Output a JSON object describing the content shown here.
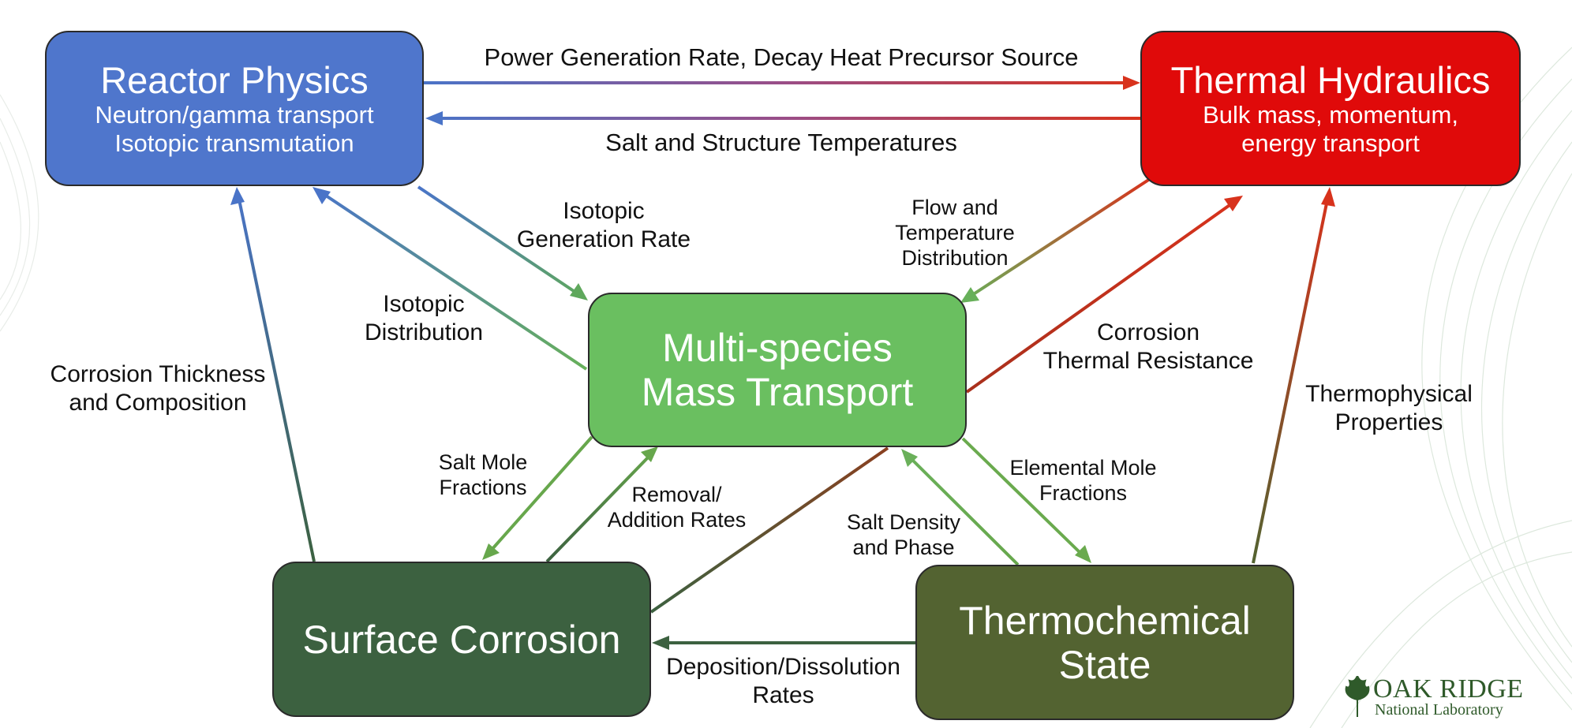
{
  "colors": {
    "reactor_physics": "#4f76cc",
    "thermal_hydraulics": "#e00a0a",
    "mass_transport": "#6abf60",
    "surface_corrosion": "#3c6140",
    "thermochemical_state": "#536331",
    "arrow_blue": "#4a74c8",
    "arrow_red": "#d8321c",
    "arrow_green": "#67a74c",
    "arrow_darkgreen": "#3c6140",
    "logo": "#2f5a2a"
  },
  "boxes": {
    "reactor_physics": {
      "title": "Reactor Physics",
      "line1": "Neutron/gamma transport",
      "line2": "Isotopic transmutation"
    },
    "thermal_hydraulics": {
      "title": "Thermal Hydraulics",
      "line1": "Bulk mass, momentum,",
      "line2": "energy transport"
    },
    "mass_transport": {
      "line1": "Multi-species",
      "line2": "Mass Transport"
    },
    "surface_corrosion": {
      "title": "Surface Corrosion"
    },
    "thermochemical_state": {
      "line1": "Thermochemical",
      "line2": "State"
    }
  },
  "labels": {
    "power_generation": "Power Generation Rate, Decay Heat Precursor Source",
    "salt_structure_temps": "Salt and Structure Temperatures",
    "isotopic_generation": [
      "Isotopic",
      "Generation Rate"
    ],
    "isotopic_distribution": [
      "Isotopic",
      "Distribution"
    ],
    "flow_temperature": [
      "Flow and",
      "Temperature",
      "Distribution"
    ],
    "corrosion_thermal_resistance": [
      "Corrosion",
      "Thermal Resistance"
    ],
    "corrosion_thickness": [
      "Corrosion Thickness",
      "and Composition"
    ],
    "thermophysical_properties": [
      "Thermophysical",
      "Properties"
    ],
    "salt_mole_fractions": [
      "Salt Mole",
      "Fractions"
    ],
    "removal_addition": [
      "Removal/",
      "Addition Rates"
    ],
    "salt_density_phase": [
      "Salt Density",
      "and Phase"
    ],
    "elemental_mole_fractions": [
      "Elemental Mole",
      "Fractions"
    ],
    "deposition_dissolution": [
      "Deposition/Dissolution",
      "Rates"
    ]
  },
  "logo": {
    "name": "OAK RIDGE",
    "subtitle": "National Laboratory",
    "icon": "oak-leaf-icon"
  }
}
